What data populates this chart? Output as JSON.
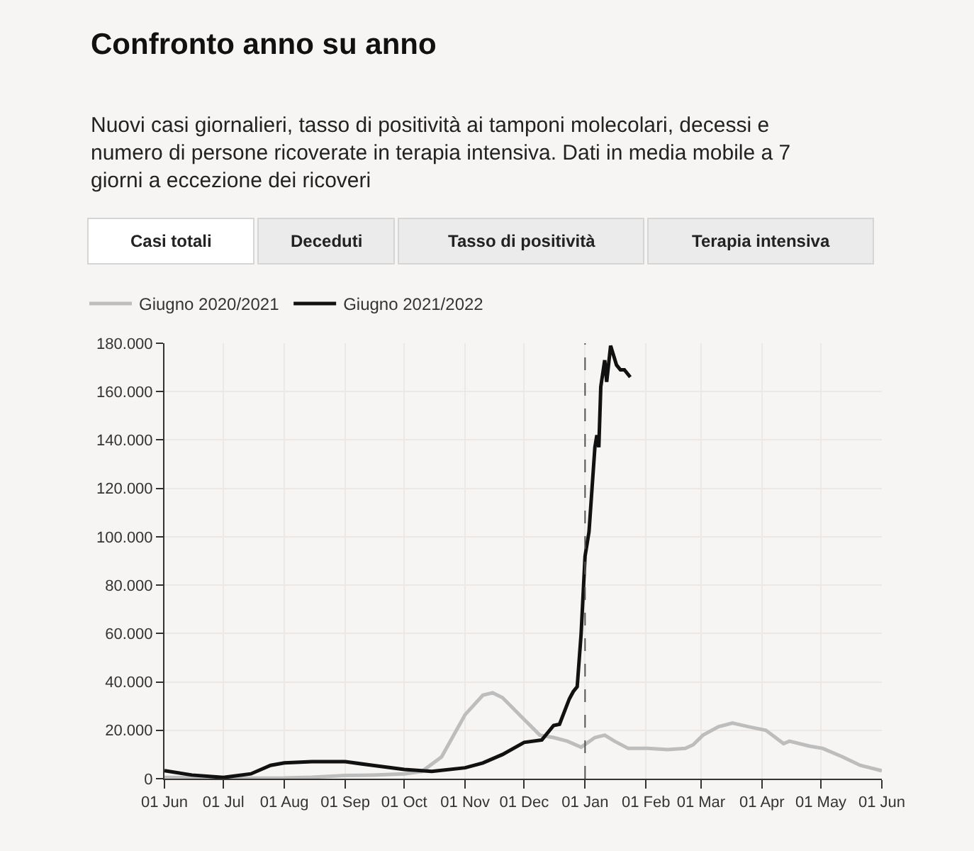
{
  "chart_data": {
    "type": "line",
    "title": "Confronto anno su anno",
    "subtitle": "Nuovi casi giornalieri, tasso di positività ai tamponi molecolari, decessi e numero di persone ricoverate in terapia intensiva. Dati in media mobile a 7 giorni a eccezione dei ricoveri",
    "annotations": [
      "Casi totali",
      "Deceduti",
      "Tasso di positività",
      "Terapia intensiva"
    ],
    "series": [
      {
        "name": "Giugno 2020/2021",
        "color": "#bdbdbd",
        "x": [
          "2021-06-01",
          "2021-07-01",
          "2021-08-01",
          "2021-08-15",
          "2021-09-01",
          "2021-09-15",
          "2021-10-01",
          "2021-10-10",
          "2021-10-20",
          "2021-11-01",
          "2021-11-10",
          "2021-11-15",
          "2021-11-20",
          "2021-12-01",
          "2021-12-09",
          "2021-12-16",
          "2021-12-23",
          "2021-12-30",
          "2022-01-06",
          "2022-01-11",
          "2022-01-16",
          "2022-01-23",
          "2022-02-02",
          "2022-02-12",
          "2022-02-21",
          "2022-02-25",
          "2022-03-02",
          "2022-03-10",
          "2022-03-17",
          "2022-03-25",
          "2022-04-03",
          "2022-04-12",
          "2022-04-15",
          "2022-04-25",
          "2022-05-02",
          "2022-05-12",
          "2022-05-21",
          "2022-06-01"
        ],
        "values": [
          500,
          200,
          300,
          600,
          1300,
          1500,
          2000,
          3000,
          9000,
          26500,
          34500,
          35500,
          33500,
          24500,
          18000,
          17000,
          15500,
          13000,
          17000,
          18000,
          15500,
          12500,
          12500,
          12000,
          12500,
          14000,
          18000,
          21500,
          23000,
          21500,
          20000,
          14500,
          15500,
          13500,
          12500,
          9000,
          5500,
          3300
        ]
      },
      {
        "name": "Giugno 2021/2022",
        "color": "#111111",
        "x": [
          "2021-06-01",
          "2021-06-15",
          "2021-07-01",
          "2021-07-15",
          "2021-07-25",
          "2021-08-01",
          "2021-08-15",
          "2021-09-01",
          "2021-09-15",
          "2021-10-01",
          "2021-10-15",
          "2021-11-01",
          "2021-11-10",
          "2021-11-20",
          "2021-12-01",
          "2021-12-10",
          "2021-12-16",
          "2021-12-19",
          "2021-12-24",
          "2021-12-26",
          "2021-12-28",
          "2021-12-30",
          "2022-01-01",
          "2022-01-03",
          "2022-01-06",
          "2022-01-07",
          "2022-01-08",
          "2022-01-09",
          "2022-01-11",
          "2022-01-12",
          "2022-01-14",
          "2022-01-17",
          "2022-01-19",
          "2022-01-21",
          "2022-01-24"
        ],
        "values": [
          3300,
          1500,
          500,
          2000,
          5500,
          6500,
          7000,
          7000,
          5500,
          3800,
          3000,
          4500,
          6500,
          10000,
          15000,
          16000,
          22000,
          22500,
          33000,
          36000,
          38000,
          60000,
          92000,
          102000,
          137000,
          142000,
          137000,
          162000,
          173000,
          164000,
          179000,
          171000,
          169000,
          169000,
          166000
        ]
      }
    ],
    "xlim": [
      "2021-06-01",
      "2022-06-01"
    ],
    "xticks": [
      {
        "value": "2021-06-01",
        "label": "01 Jun"
      },
      {
        "value": "2021-07-01",
        "label": "01 Jul"
      },
      {
        "value": "2021-08-01",
        "label": "01 Aug"
      },
      {
        "value": "2021-09-01",
        "label": "01 Sep"
      },
      {
        "value": "2021-10-01",
        "label": "01 Oct"
      },
      {
        "value": "2021-11-01",
        "label": "01 Nov"
      },
      {
        "value": "2021-12-01",
        "label": "01 Dec"
      },
      {
        "value": "2022-01-01",
        "label": "01 Jan"
      },
      {
        "value": "2022-02-01",
        "label": "01 Feb"
      },
      {
        "value": "2022-03-01",
        "label": "01 Mar"
      },
      {
        "value": "2022-04-01",
        "label": "01 Apr"
      },
      {
        "value": "2022-05-01",
        "label": "01 May"
      },
      {
        "value": "2022-06-01",
        "label": "01 Jun"
      }
    ],
    "ylim": [
      0,
      180000
    ],
    "yticks": [
      0,
      {
        "value": 20000,
        "label": "20.000"
      },
      {
        "value": 40000,
        "label": "40.000"
      },
      {
        "value": 60000,
        "label": "60.000"
      },
      {
        "value": 80000,
        "label": "80.000"
      },
      {
        "value": 100000,
        "label": "100.000"
      },
      {
        "value": 120000,
        "label": "120.000"
      },
      {
        "value": 140000,
        "label": "140.000"
      },
      {
        "value": 160000,
        "label": "160.000"
      },
      {
        "value": 180000,
        "label": "180.000"
      }
    ],
    "ref_lines": [
      {
        "axis": "x",
        "value": "2022-01-01",
        "color": "#555555",
        "line_style": "dashed"
      }
    ],
    "grid": true,
    "legend": "top left",
    "marker": "none",
    "line_style": "solid"
  }
}
